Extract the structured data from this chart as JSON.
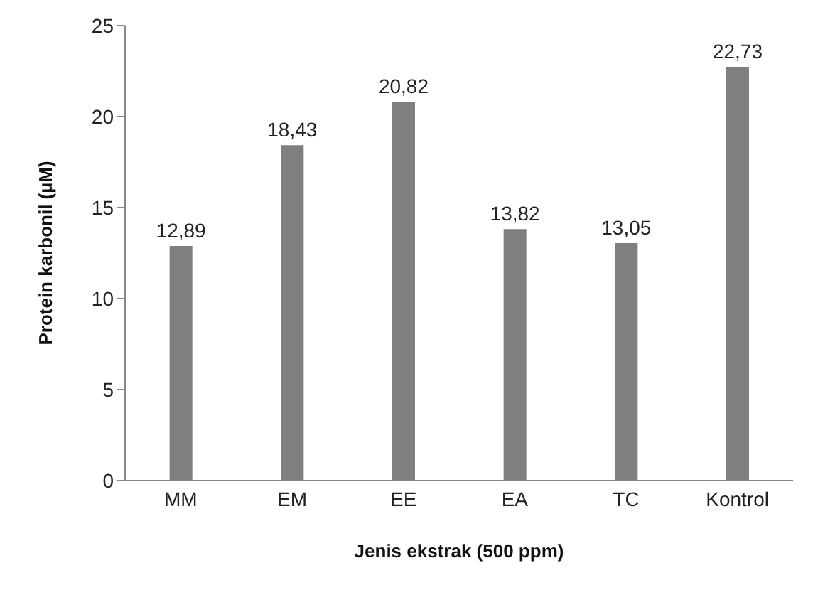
{
  "chart_data": {
    "type": "bar",
    "xlabel": "Jenis ekstrak (500 ppm)",
    "ylabel": "Protein karbonil (µM)",
    "categories": [
      "MM",
      "EM",
      "EE",
      "EA",
      "TC",
      "Kontrol"
    ],
    "values": [
      12.89,
      18.43,
      20.82,
      13.82,
      13.05,
      22.73
    ],
    "value_labels": [
      "12,89",
      "18,43",
      "20,82",
      "13,82",
      "13,05",
      "22,73"
    ],
    "color": "#7f7f7f",
    "ylim": [
      0,
      25
    ],
    "yticks": [
      0,
      5,
      10,
      15,
      20,
      25
    ],
    "grid": false,
    "legend": false
  }
}
